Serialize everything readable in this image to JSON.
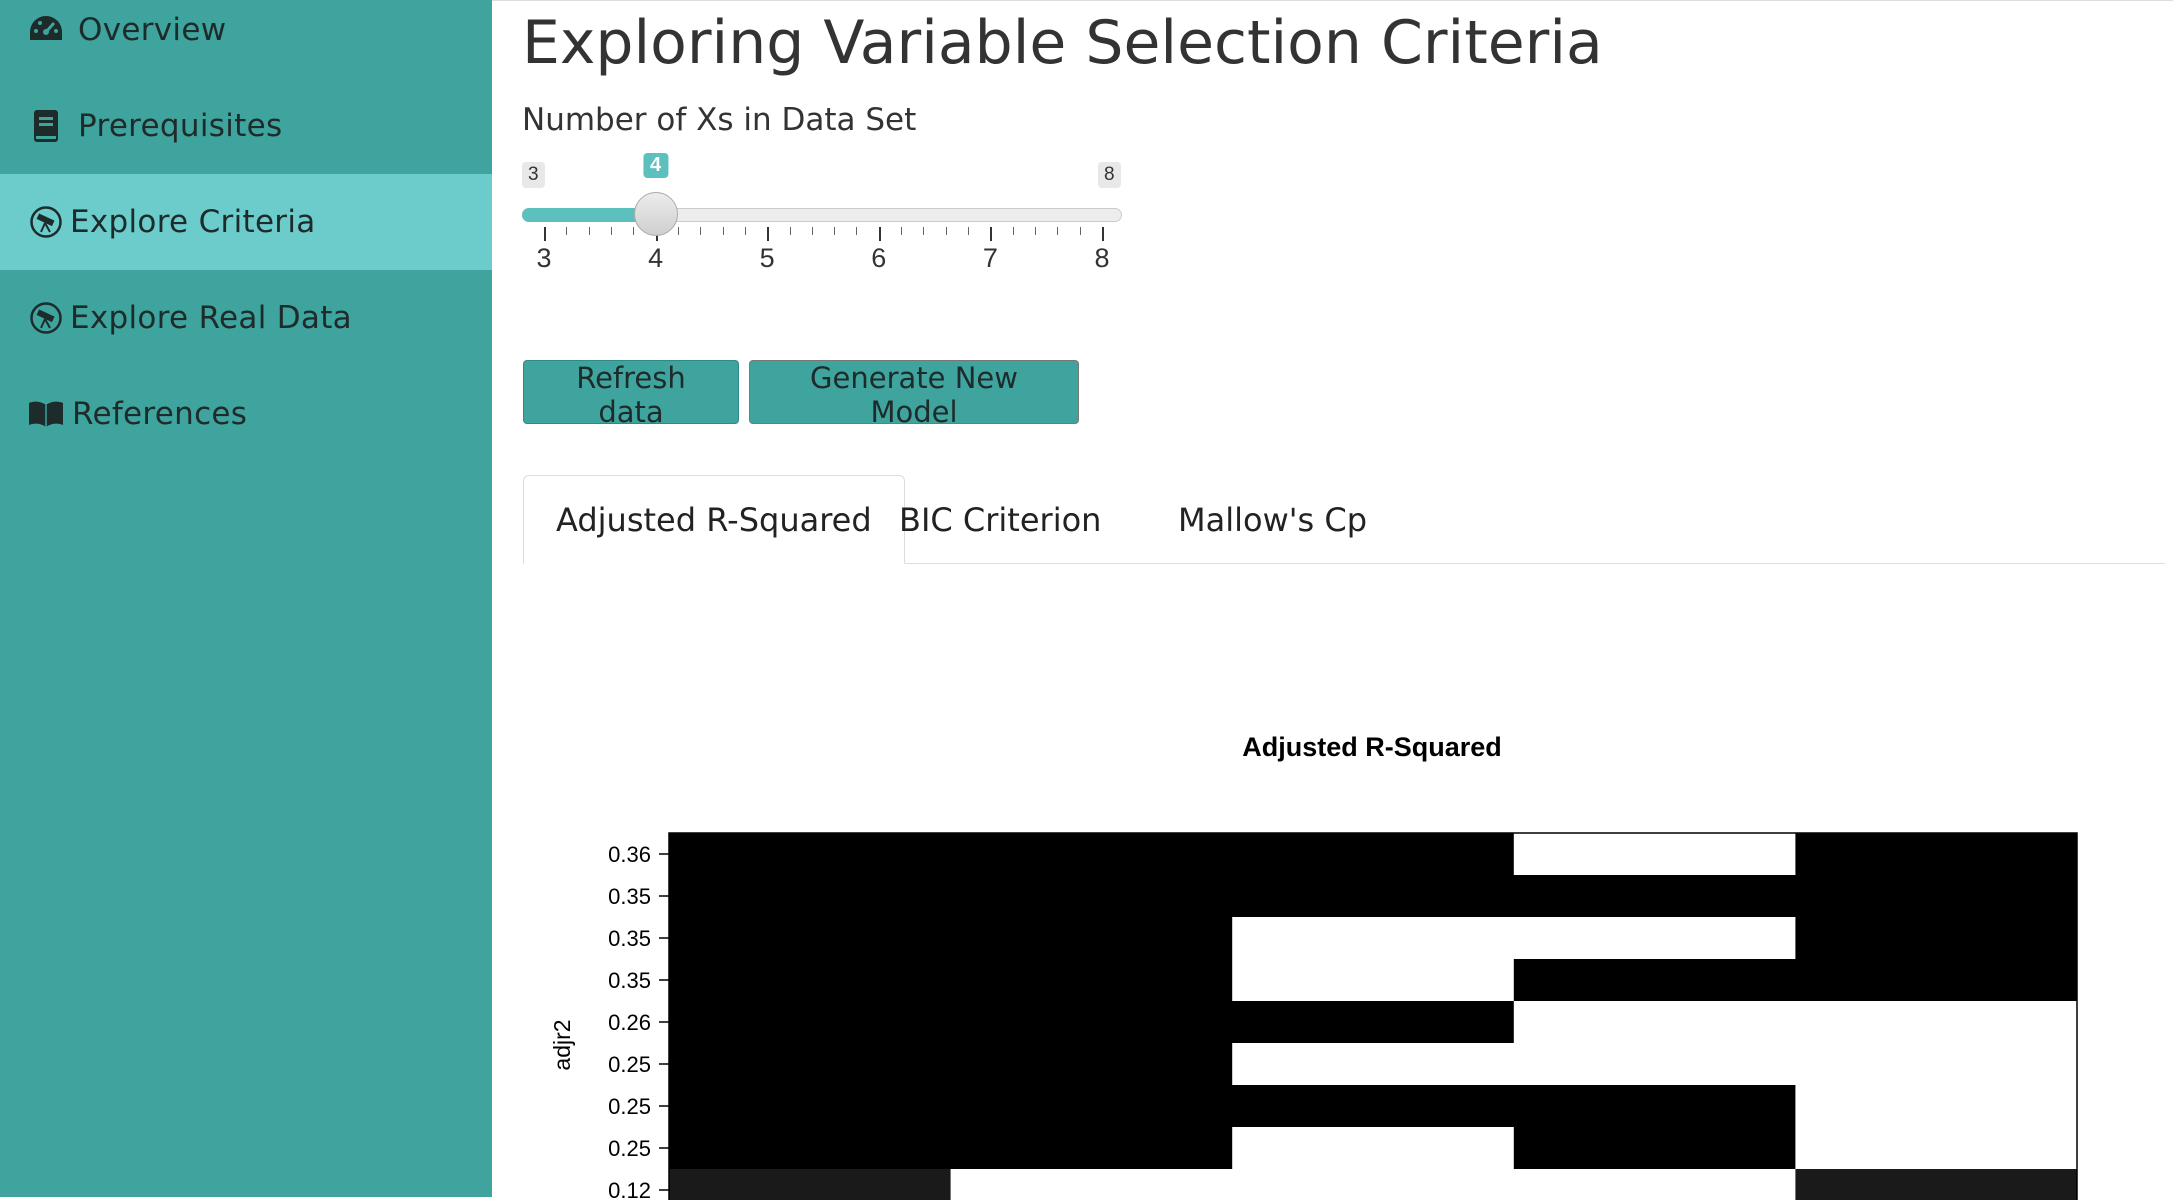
{
  "sidebar": {
    "items": [
      {
        "label": "Overview",
        "icon": "dashboard-gauge-icon",
        "active": false
      },
      {
        "label": "Prerequisites",
        "icon": "book-icon",
        "active": false
      },
      {
        "label": "Explore Criteria",
        "icon": "telescope-circle-icon",
        "active": true
      },
      {
        "label": "Explore Real Data",
        "icon": "telescope-circle-icon",
        "active": false
      },
      {
        "label": "References",
        "icon": "open-book-icon",
        "active": false
      }
    ]
  },
  "main": {
    "title": "Exploring Variable Selection Criteria",
    "slider": {
      "label": "Number of Xs in Data Set",
      "min": 3,
      "max": 8,
      "value": 4,
      "min_label": "3",
      "max_label": "8",
      "value_label": "4",
      "tick_labels": [
        "3",
        "4",
        "5",
        "6",
        "7",
        "8"
      ]
    },
    "buttons": {
      "refresh": "Refresh data",
      "generate": "Generate New Model"
    },
    "tabs": [
      {
        "label": "Adjusted R-Squared",
        "active": true
      },
      {
        "label": "BIC Criterion",
        "active": false
      },
      {
        "label": "Mallow's Cp",
        "active": false
      }
    ]
  },
  "colors": {
    "sidebar_bg": "#3fa39e",
    "sidebar_active": "#6ccccb",
    "accent": "#5bc0be"
  },
  "chart_data": {
    "type": "heatmap",
    "title": "Adjusted R-Squared",
    "ylabel": "adjr2",
    "xlabel": "",
    "y_tick_labels": [
      "0.36",
      "0.35",
      "0.35",
      "0.35",
      "0.26",
      "0.25",
      "0.25",
      "0.25",
      "0.12"
    ],
    "columns": 5,
    "rows": [
      [
        1,
        1,
        1,
        0,
        1
      ],
      [
        1,
        1,
        1,
        1,
        1
      ],
      [
        1,
        1,
        0,
        0,
        1
      ],
      [
        1,
        1,
        0,
        1,
        1
      ],
      [
        1,
        1,
        1,
        0,
        0
      ],
      [
        1,
        1,
        0,
        0,
        0
      ],
      [
        1,
        1,
        1,
        1,
        0
      ],
      [
        1,
        1,
        0,
        1,
        0
      ],
      [
        1,
        0,
        0,
        0,
        1
      ]
    ]
  }
}
